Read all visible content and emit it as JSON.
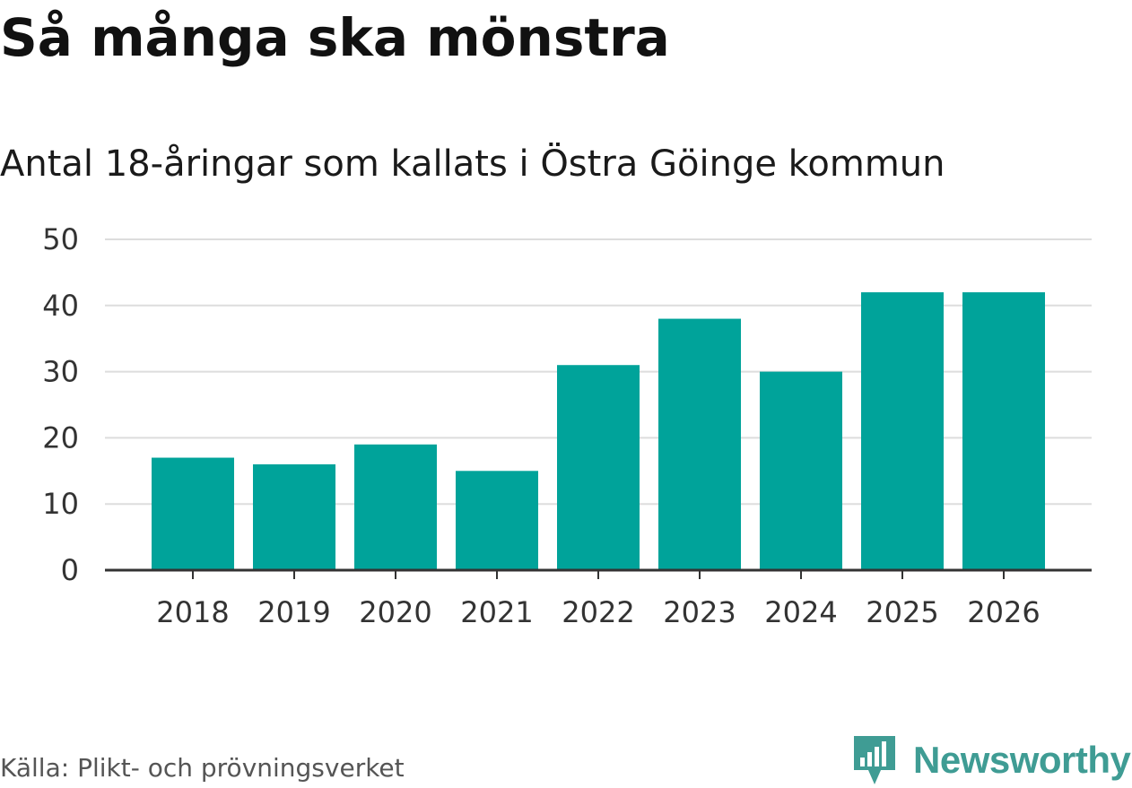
{
  "header": {
    "title": "Så många ska mönstra",
    "subtitle": "Antal 18-åringar som kallats i Östra Göinge kommun"
  },
  "footer": {
    "source": "Källa: Plikt- och prövningsverket",
    "brand": "Newsworthy"
  },
  "colors": {
    "bar": "#00a39a",
    "grid": "#dddddd",
    "axis": "#333333",
    "brand": "#3f9c94"
  },
  "chart_data": {
    "type": "bar",
    "title": "Så många ska mönstra",
    "subtitle": "Antal 18-åringar som kallats i Östra Göinge kommun",
    "xlabel": "",
    "ylabel": "",
    "categories": [
      "2018",
      "2019",
      "2020",
      "2021",
      "2022",
      "2023",
      "2024",
      "2025",
      "2026"
    ],
    "values": [
      17,
      16,
      19,
      15,
      31,
      38,
      30,
      42,
      42
    ],
    "ylim": [
      0,
      50
    ],
    "yticks": [
      "0",
      "10",
      "20",
      "30",
      "40",
      "50"
    ],
    "grid": true,
    "legend": "none"
  }
}
